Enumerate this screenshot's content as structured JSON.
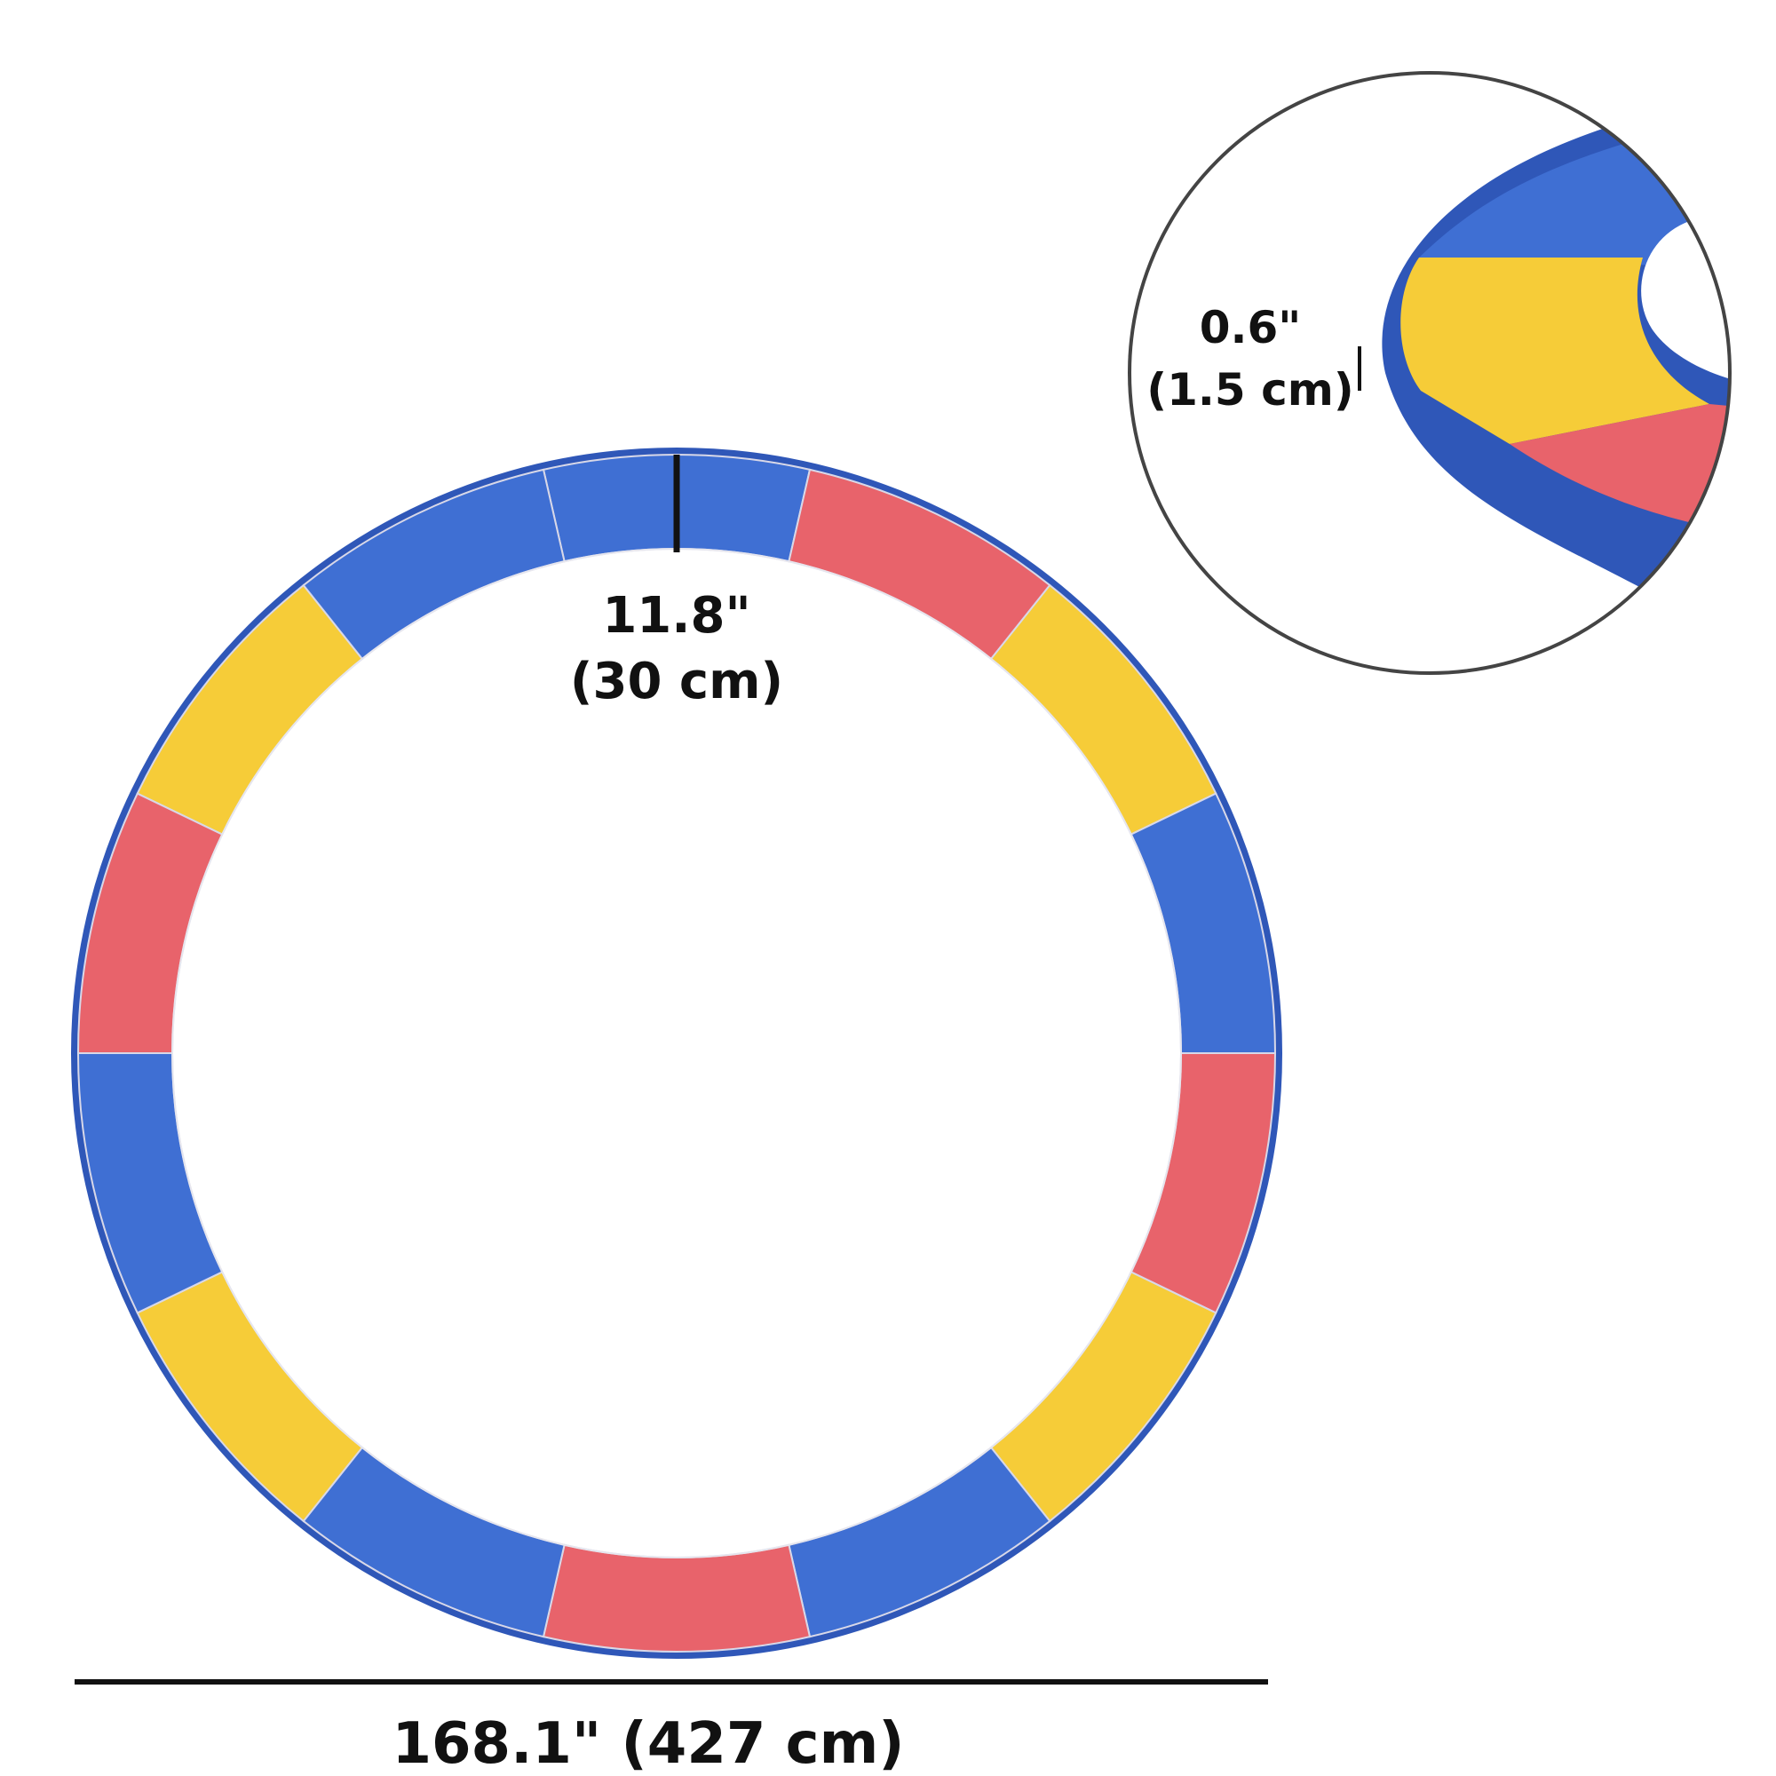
{
  "colors": {
    "blue": "#3f6fd3",
    "red": "#e8636b",
    "yellow": "#f6cc38",
    "edge": "#2f57b8",
    "line": "#111111",
    "inset_border": "#444444"
  },
  "ring": {
    "segments": [
      "blue",
      "red",
      "yellow",
      "blue",
      "red",
      "yellow",
      "blue",
      "red",
      "blue",
      "yellow",
      "blue",
      "red",
      "yellow",
      "blue"
    ]
  },
  "dimensions": {
    "pad_width_in": "11.8\"",
    "pad_width_cm": "(30 cm)",
    "diameter": "168.1\" (427 cm)",
    "thickness_in": "0.6\"",
    "thickness_cm": "(1.5 cm)"
  }
}
